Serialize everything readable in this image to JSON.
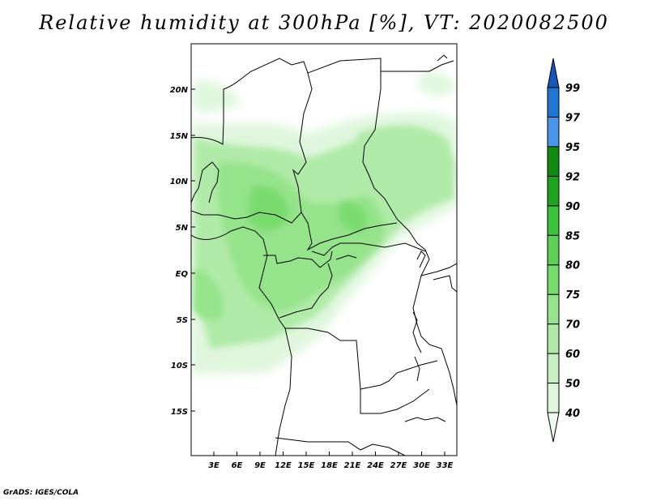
{
  "title": "Relative humidity at 300hPa [%], VT: 2020082500",
  "credit": "GrADS: IGES/COLA",
  "map": {
    "lat_labels": [
      "20N",
      "15N",
      "10N",
      "5N",
      "EQ",
      "5S",
      "10S",
      "15S"
    ],
    "lon_labels": [
      "3E",
      "6E",
      "9E",
      "12E",
      "15E",
      "18E",
      "21E",
      "24E",
      "27E",
      "30E",
      "33E"
    ]
  },
  "colorbar": {
    "levels": [
      "40",
      "50",
      "60",
      "70",
      "75",
      "80",
      "85",
      "90",
      "92",
      "95",
      "97",
      "99"
    ],
    "colors": [
      "#f0fbf0",
      "#dff6dd",
      "#c8f0c4",
      "#b0eaa8",
      "#95e38b",
      "#79db6e",
      "#5ed057",
      "#3cc23a",
      "#1fa21f",
      "#128a12",
      "#4a95e8",
      "#2474d4",
      "#1a55b8"
    ]
  }
}
